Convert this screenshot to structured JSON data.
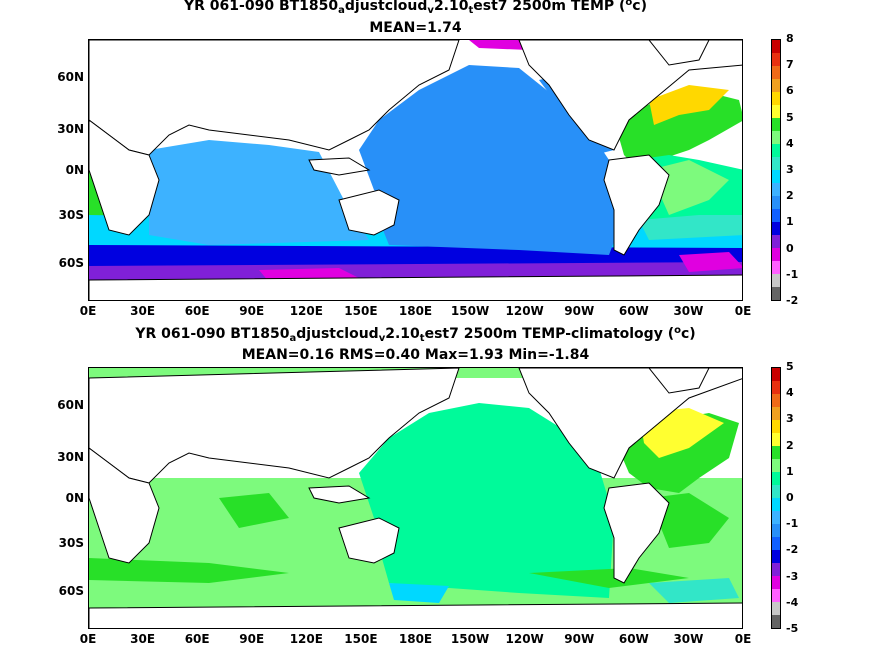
{
  "panels": [
    {
      "title_parts": [
        "YR 061-090 BT1850",
        "a",
        "djustcloud",
        "v",
        "2.10",
        "t",
        "est7 2500m TEMP (",
        "o",
        "c)"
      ],
      "subtitle": "MEAN=1.74",
      "colorbar_ticks": [
        "8",
        "7",
        "6",
        "5",
        "4",
        "3",
        "2",
        "1",
        "0",
        "-1",
        "-2"
      ],
      "colorbar_colors": [
        "#c80000",
        "#e83010",
        "#f06a18",
        "#f0a020",
        "#ffd800",
        "#ffff30",
        "#28e028",
        "#7dfa7d",
        "#00fa9a",
        "#32e6c8",
        "#00d8ff",
        "#3db2ff",
        "#2890f8",
        "#1060ff",
        "#0000e0",
        "#8020d8",
        "#e000e0",
        "#ff60ff",
        "#c8c8c8",
        "#646464"
      ]
    },
    {
      "title_parts": [
        "YR 061-090 BT1850",
        "a",
        "djustcloud",
        "v",
        "2.10",
        "t",
        "est7 2500m TEMP-climatology (",
        "o",
        "c)"
      ],
      "subtitle": "MEAN=0.16   RMS=0.40   Max=1.93   Min=-1.84",
      "colorbar_ticks": [
        "5",
        "4",
        "3",
        "2",
        "1",
        "0",
        "-1",
        "-2",
        "-3",
        "-4",
        "-5"
      ],
      "colorbar_colors": [
        "#c80000",
        "#e83010",
        "#f06a18",
        "#f0a020",
        "#ffd800",
        "#ffff30",
        "#28e028",
        "#7dfa7d",
        "#00fa9a",
        "#32e6c8",
        "#00d8ff",
        "#3db2ff",
        "#2890f8",
        "#1060ff",
        "#0000e0",
        "#8020d8",
        "#e000e0",
        "#ff60ff",
        "#c8c8c8",
        "#646464"
      ]
    }
  ],
  "lat_labels": [
    "60N",
    "30N",
    "0N",
    "30S",
    "60S"
  ],
  "lon_labels": [
    "0E",
    "30E",
    "60E",
    "90E",
    "120E",
    "150E",
    "180E",
    "150W",
    "120W",
    "90W",
    "60W",
    "30W",
    "0E"
  ]
}
